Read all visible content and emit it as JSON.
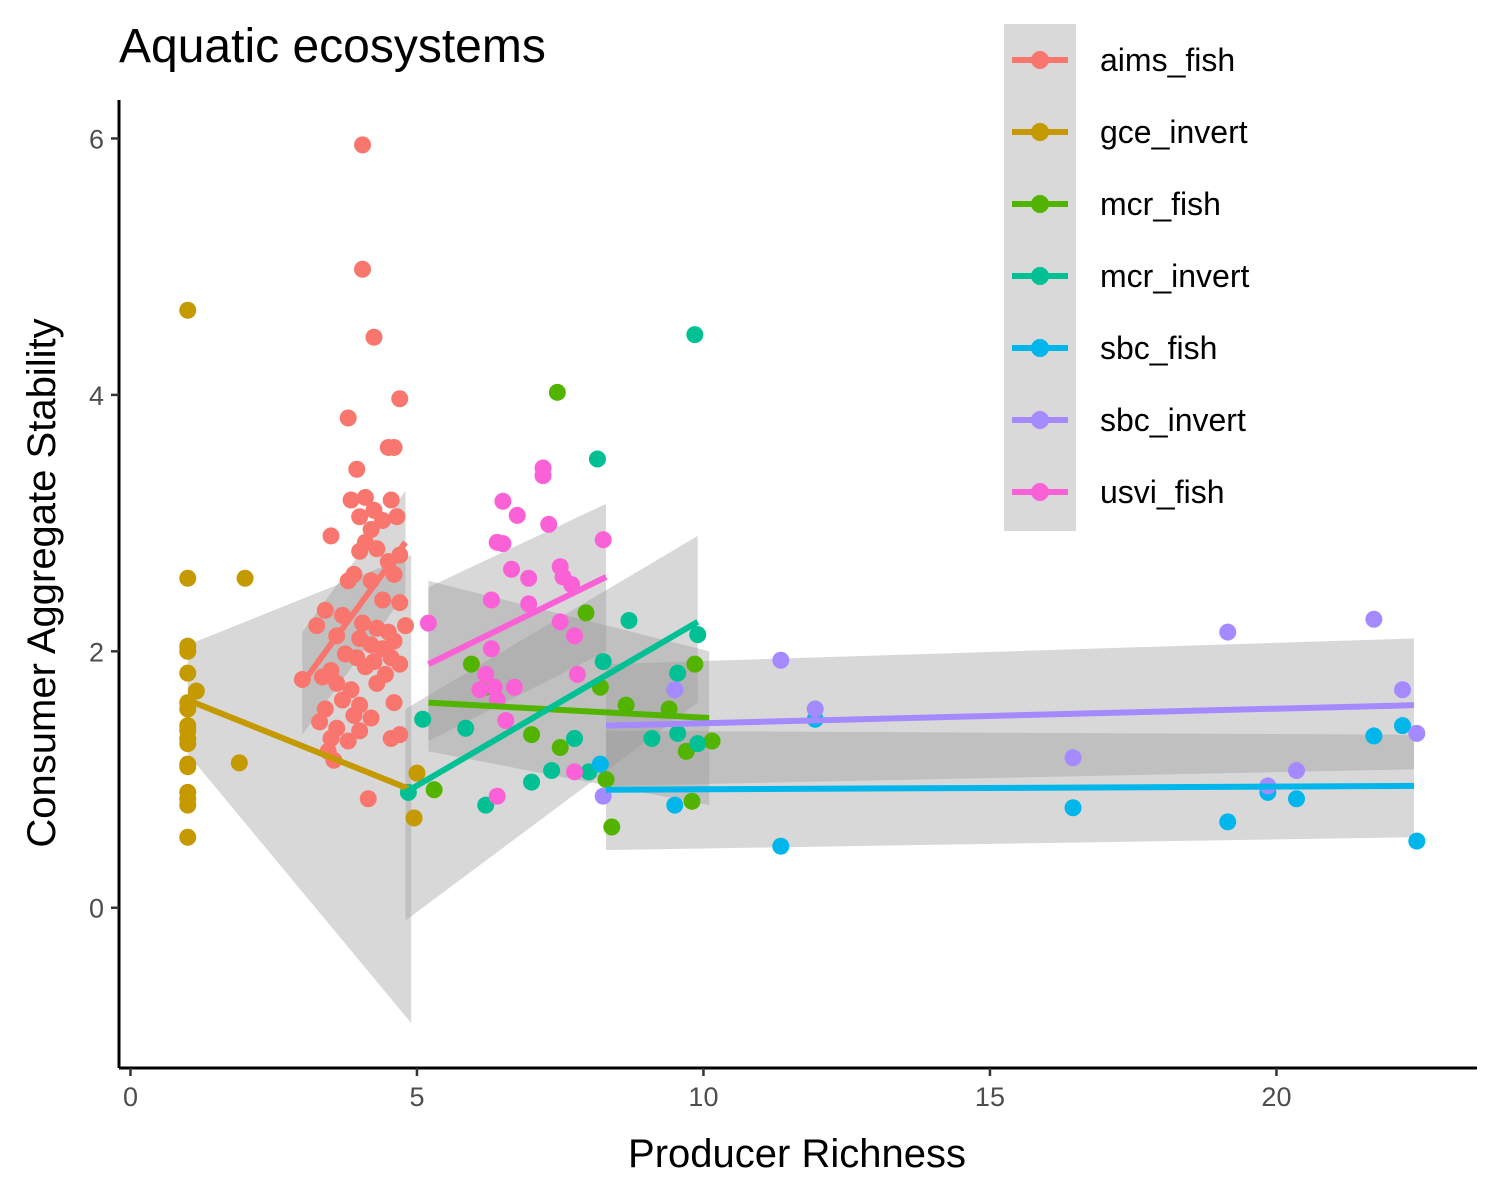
{
  "chart_data": {
    "type": "scatter",
    "title": "Aquatic ecosystems",
    "xlabel": "Producer Richness",
    "ylabel": "Consumer Aggregate Stability",
    "xlim": [
      -0.2,
      23.5
    ],
    "ylim": [
      -1.25,
      6.3
    ],
    "x_ticks": [
      0,
      5,
      10,
      15,
      20
    ],
    "y_ticks": [
      0,
      2,
      4,
      6
    ],
    "grid": false,
    "legend_position": "top-right",
    "series": [
      {
        "name": "aims_fish",
        "color": "#F8766D",
        "points": [
          [
            4.05,
            5.95
          ],
          [
            4.05,
            4.98
          ],
          [
            4.25,
            4.45
          ],
          [
            4.7,
            3.97
          ],
          [
            3.8,
            3.82
          ],
          [
            4.6,
            3.59
          ],
          [
            4.5,
            3.59
          ],
          [
            3.95,
            3.42
          ],
          [
            3.5,
            2.9
          ],
          [
            3.85,
            3.18
          ],
          [
            4.1,
            3.2
          ],
          [
            4.25,
            3.1
          ],
          [
            4.55,
            3.18
          ],
          [
            4.0,
            3.05
          ],
          [
            4.4,
            3.02
          ],
          [
            4.2,
            2.95
          ],
          [
            4.65,
            3.05
          ],
          [
            4.1,
            2.85
          ],
          [
            4.3,
            2.8
          ],
          [
            4.0,
            2.78
          ],
          [
            4.5,
            2.7
          ],
          [
            4.7,
            2.75
          ],
          [
            3.9,
            2.6
          ],
          [
            4.2,
            2.55
          ],
          [
            3.8,
            2.55
          ],
          [
            4.6,
            2.6
          ],
          [
            4.4,
            2.4
          ],
          [
            4.7,
            2.38
          ],
          [
            3.4,
            2.32
          ],
          [
            3.7,
            2.28
          ],
          [
            4.05,
            2.22
          ],
          [
            4.3,
            2.18
          ],
          [
            4.5,
            2.15
          ],
          [
            4.8,
            2.2
          ],
          [
            3.25,
            2.2
          ],
          [
            3.6,
            2.12
          ],
          [
            4.0,
            2.1
          ],
          [
            4.2,
            2.05
          ],
          [
            4.4,
            2.02
          ],
          [
            4.6,
            2.08
          ],
          [
            3.95,
            1.95
          ],
          [
            4.25,
            1.92
          ],
          [
            4.55,
            1.95
          ],
          [
            3.75,
            1.98
          ],
          [
            3.5,
            1.85
          ],
          [
            4.1,
            1.88
          ],
          [
            4.45,
            1.82
          ],
          [
            4.7,
            1.9
          ],
          [
            3.0,
            1.78
          ],
          [
            3.35,
            1.8
          ],
          [
            3.6,
            1.75
          ],
          [
            3.85,
            1.7
          ],
          [
            4.3,
            1.75
          ],
          [
            3.7,
            1.62
          ],
          [
            4.0,
            1.58
          ],
          [
            4.6,
            1.6
          ],
          [
            3.4,
            1.55
          ],
          [
            3.9,
            1.5
          ],
          [
            4.2,
            1.48
          ],
          [
            3.3,
            1.45
          ],
          [
            3.6,
            1.4
          ],
          [
            4.0,
            1.38
          ],
          [
            3.5,
            1.32
          ],
          [
            3.8,
            1.3
          ],
          [
            4.55,
            1.32
          ],
          [
            4.7,
            1.35
          ],
          [
            3.45,
            1.22
          ],
          [
            3.55,
            1.15
          ],
          [
            4.15,
            0.85
          ]
        ],
        "fit": {
          "x": [
            3.0,
            4.8
          ],
          "y": [
            1.75,
            2.85
          ],
          "band_lower": [
            1.35,
            2.45
          ],
          "band_upper": [
            2.15,
            3.25
          ]
        }
      },
      {
        "name": "gce_invert",
        "color": "#C49A00",
        "points": [
          [
            1.0,
            4.66
          ],
          [
            1.0,
            2.57
          ],
          [
            2.0,
            2.57
          ],
          [
            1.0,
            2.04
          ],
          [
            1.0,
            2.0
          ],
          [
            1.0,
            1.83
          ],
          [
            1.15,
            1.69
          ],
          [
            1.0,
            1.6
          ],
          [
            1.0,
            1.55
          ],
          [
            1.0,
            1.42
          ],
          [
            1.0,
            1.38
          ],
          [
            1.0,
            1.32
          ],
          [
            1.0,
            1.28
          ],
          [
            1.0,
            1.12
          ],
          [
            1.0,
            1.1
          ],
          [
            1.9,
            1.13
          ],
          [
            1.0,
            0.9
          ],
          [
            1.0,
            0.85
          ],
          [
            1.0,
            0.8
          ],
          [
            1.0,
            0.55
          ],
          [
            4.95,
            0.7
          ],
          [
            5.0,
            1.05
          ]
        ],
        "fit": {
          "x": [
            1.0,
            4.9
          ],
          "y": [
            1.62,
            0.92
          ],
          "band_lower": [
            1.2,
            -0.9
          ],
          "band_upper": [
            2.05,
            2.75
          ]
        }
      },
      {
        "name": "mcr_fish",
        "color": "#53B400",
        "points": [
          [
            7.45,
            4.02
          ],
          [
            7.95,
            2.3
          ],
          [
            5.95,
            1.9
          ],
          [
            9.85,
            1.9
          ],
          [
            8.2,
            1.72
          ],
          [
            9.4,
            1.55
          ],
          [
            7.0,
            1.35
          ],
          [
            7.5,
            1.25
          ],
          [
            9.7,
            1.22
          ],
          [
            10.15,
            1.3
          ],
          [
            8.3,
            1.0
          ],
          [
            5.3,
            0.92
          ],
          [
            9.8,
            0.83
          ],
          [
            8.4,
            0.63
          ],
          [
            6.2,
            1.72
          ],
          [
            8.65,
            1.58
          ]
        ],
        "fit": {
          "x": [
            5.2,
            10.1
          ],
          "y": [
            1.6,
            1.48
          ],
          "band_lower": [
            1.22,
            0.8
          ],
          "band_upper": [
            2.55,
            2.0
          ]
        }
      },
      {
        "name": "mcr_invert",
        "color": "#00C094",
        "points": [
          [
            9.85,
            4.47
          ],
          [
            8.15,
            3.5
          ],
          [
            8.7,
            2.24
          ],
          [
            9.9,
            2.13
          ],
          [
            8.25,
            1.92
          ],
          [
            9.55,
            1.83
          ],
          [
            5.1,
            1.47
          ],
          [
            5.85,
            1.4
          ],
          [
            9.1,
            1.32
          ],
          [
            9.9,
            1.28
          ],
          [
            7.75,
            1.32
          ],
          [
            7.0,
            0.98
          ],
          [
            7.35,
            1.07
          ],
          [
            8.0,
            1.06
          ],
          [
            6.2,
            0.8
          ],
          [
            4.85,
            0.9
          ],
          [
            9.55,
            1.36
          ]
        ],
        "fit": {
          "x": [
            4.8,
            9.9
          ],
          "y": [
            0.9,
            2.23
          ],
          "band_lower": [
            -0.1,
            1.6
          ],
          "band_upper": [
            1.55,
            2.9
          ]
        }
      },
      {
        "name": "sbc_fish",
        "color": "#00B6EB",
        "points": [
          [
            11.35,
            0.48
          ],
          [
            9.5,
            0.8
          ],
          [
            8.2,
            1.12
          ],
          [
            11.95,
            1.47
          ],
          [
            16.45,
            0.78
          ],
          [
            19.15,
            0.67
          ],
          [
            19.85,
            0.9
          ],
          [
            20.35,
            0.85
          ],
          [
            21.7,
            1.34
          ],
          [
            22.2,
            1.42
          ],
          [
            22.45,
            0.52
          ]
        ],
        "fit": {
          "x": [
            8.3,
            22.4
          ],
          "y": [
            0.92,
            0.95
          ],
          "band_lower": [
            0.45,
            0.55
          ],
          "band_upper": [
            1.38,
            1.35
          ]
        }
      },
      {
        "name": "sbc_invert",
        "color": "#A58AFF",
        "points": [
          [
            11.35,
            1.93
          ],
          [
            11.95,
            1.55
          ],
          [
            16.45,
            1.17
          ],
          [
            19.15,
            2.15
          ],
          [
            19.85,
            0.95
          ],
          [
            20.35,
            1.07
          ],
          [
            21.7,
            2.25
          ],
          [
            22.2,
            1.7
          ],
          [
            22.45,
            1.36
          ],
          [
            8.25,
            0.87
          ],
          [
            9.5,
            1.7
          ]
        ],
        "fit": {
          "x": [
            8.3,
            22.4
          ],
          "y": [
            1.42,
            1.58
          ],
          "band_lower": [
            0.95,
            1.08
          ],
          "band_upper": [
            1.9,
            2.1
          ]
        }
      },
      {
        "name": "usvi_fish",
        "color": "#FB61D7",
        "points": [
          [
            7.2,
            3.43
          ],
          [
            7.2,
            3.37
          ],
          [
            6.5,
            3.17
          ],
          [
            6.75,
            3.06
          ],
          [
            7.3,
            2.99
          ],
          [
            8.25,
            2.87
          ],
          [
            6.4,
            2.85
          ],
          [
            6.5,
            2.84
          ],
          [
            7.5,
            2.66
          ],
          [
            6.65,
            2.64
          ],
          [
            7.55,
            2.58
          ],
          [
            7.7,
            2.52
          ],
          [
            6.95,
            2.57
          ],
          [
            6.3,
            2.4
          ],
          [
            6.95,
            2.37
          ],
          [
            7.5,
            2.23
          ],
          [
            7.75,
            2.12
          ],
          [
            5.2,
            2.22
          ],
          [
            6.3,
            2.02
          ],
          [
            6.2,
            1.82
          ],
          [
            7.8,
            1.82
          ],
          [
            6.35,
            1.72
          ],
          [
            6.7,
            1.72
          ],
          [
            6.1,
            1.7
          ],
          [
            6.4,
            1.62
          ],
          [
            6.55,
            1.46
          ],
          [
            7.75,
            1.06
          ],
          [
            6.4,
            0.87
          ]
        ],
        "fit": {
          "x": [
            5.2,
            8.3
          ],
          "y": [
            1.9,
            2.58
          ],
          "band_lower": [
            1.3,
            2.0
          ],
          "band_upper": [
            2.5,
            3.15
          ]
        }
      }
    ]
  }
}
